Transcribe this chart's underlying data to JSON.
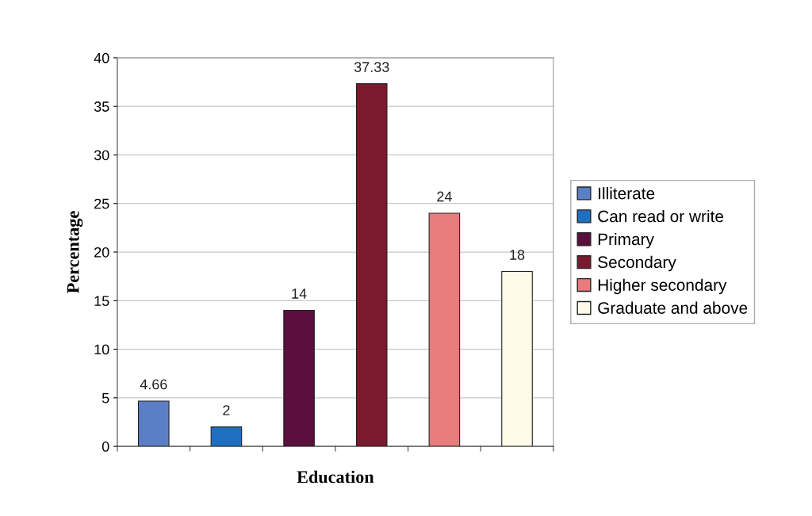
{
  "chart_data": {
    "type": "bar",
    "xlabel": "Education",
    "ylabel": "Percentage",
    "categories": [
      null,
      null,
      null,
      null,
      null,
      null
    ],
    "series": [
      {
        "name": "Illiterate",
        "color": "#5b7fc6",
        "values": [
          4.66,
          null,
          null,
          null,
          null,
          null
        ]
      },
      {
        "name": "Can read or write",
        "color": "#1f6fc0",
        "values": [
          null,
          2,
          null,
          null,
          null,
          null
        ]
      },
      {
        "name": "Primary",
        "color": "#5a0f3e",
        "values": [
          null,
          null,
          14,
          null,
          null,
          null
        ]
      },
      {
        "name": "Secondary",
        "color": "#7a1a2e",
        "values": [
          null,
          null,
          null,
          37.33,
          null,
          null
        ]
      },
      {
        "name": "Higher secondary",
        "color": "#e87b7b",
        "values": [
          null,
          null,
          null,
          null,
          24,
          null
        ]
      },
      {
        "name": "Graduate and above",
        "color": "#fdfae8",
        "values": [
          null,
          null,
          null,
          null,
          null,
          18
        ]
      }
    ],
    "ylim": [
      0,
      40
    ],
    "yticks": [
      0,
      5,
      10,
      15,
      20,
      25,
      30,
      35,
      40
    ],
    "grid": "y",
    "legend": "right",
    "data_labels": true,
    "tick_labels": "y"
  }
}
